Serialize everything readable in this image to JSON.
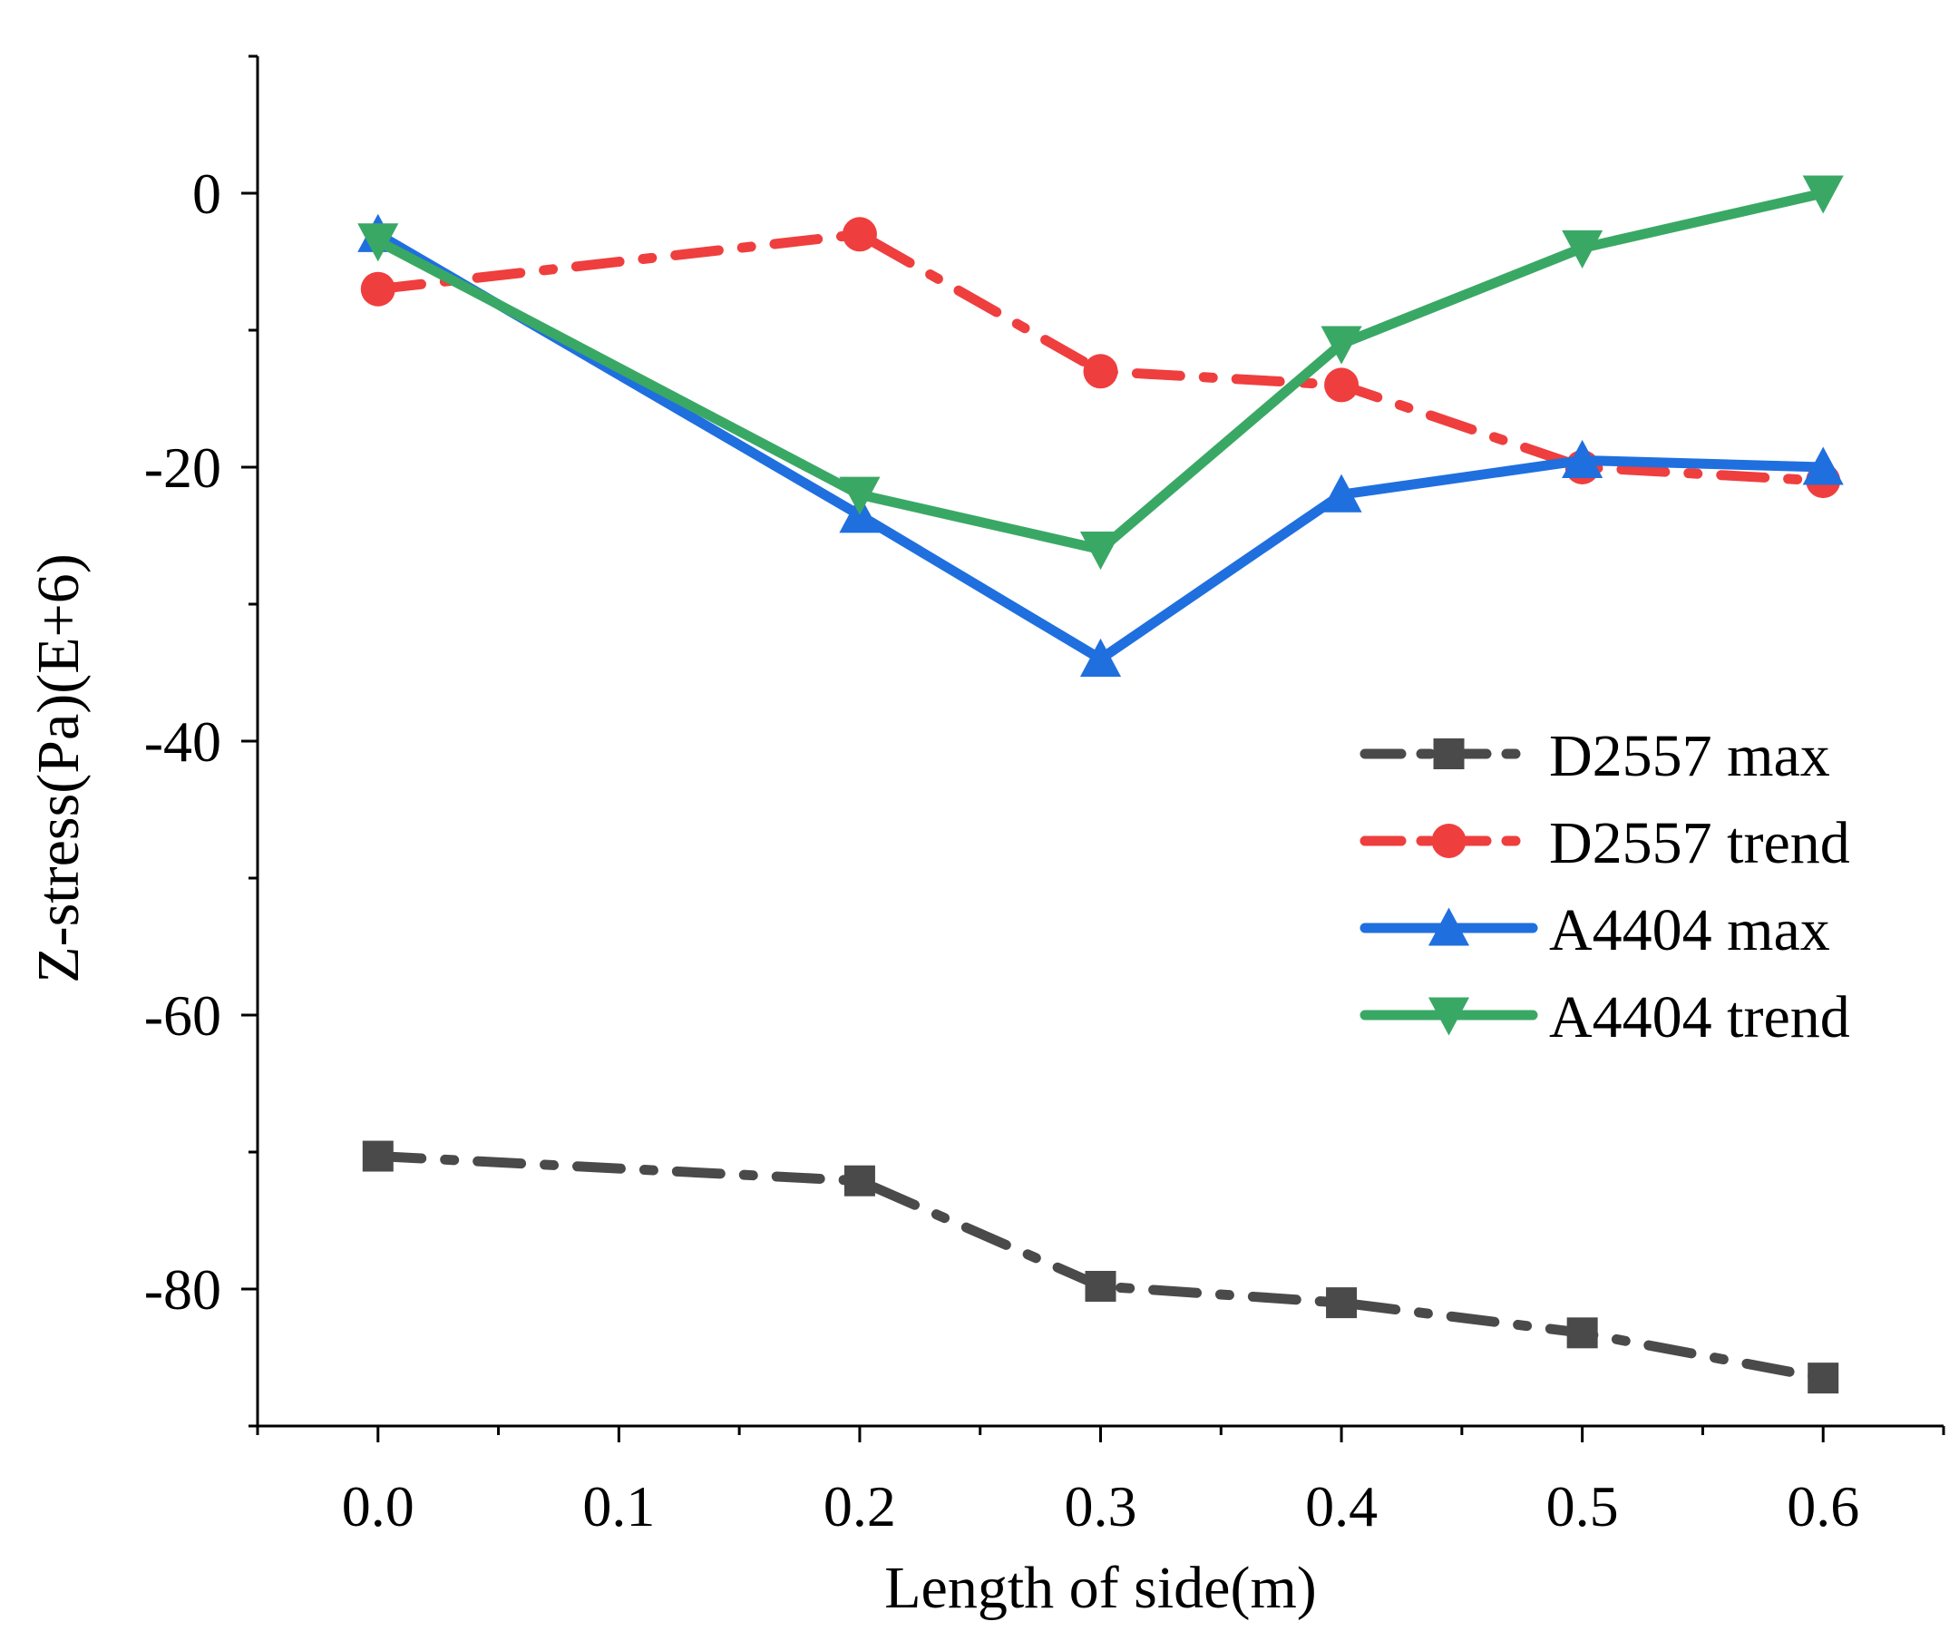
{
  "chart_data": {
    "type": "line",
    "title": "",
    "xlabel": "Length of side(m)",
    "ylabel": "Z-stress(Pa)(E+6)",
    "xlim": [
      -0.05,
      0.65
    ],
    "ylim": [
      -90,
      10
    ],
    "x": [
      0.0,
      0.2,
      0.3,
      0.4,
      0.5,
      0.6
    ],
    "xticks": [
      {
        "value": 0.0,
        "label": "0.0"
      },
      {
        "value": 0.1,
        "label": "0.1"
      },
      {
        "value": 0.2,
        "label": "0.2"
      },
      {
        "value": 0.3,
        "label": "0.3"
      },
      {
        "value": 0.4,
        "label": "0.4"
      },
      {
        "value": 0.5,
        "label": "0.5"
      },
      {
        "value": 0.6,
        "label": "0.6"
      }
    ],
    "yticks": [
      {
        "value": 0,
        "label": "0"
      },
      {
        "value": -20,
        "label": "-20"
      },
      {
        "value": -40,
        "label": "-40"
      },
      {
        "value": -60,
        "label": "-60"
      },
      {
        "value": -80,
        "label": "-80"
      }
    ],
    "legend_position": "center-right",
    "series": [
      {
        "name": "D2557 max",
        "color": "#4a4a4a",
        "marker": "square",
        "dash": "dashdot",
        "values": [
          -70.3,
          -72.1,
          -79.8,
          -81.0,
          -83.2,
          -86.5
        ]
      },
      {
        "name": "D2557 trend",
        "color": "#ef3e3e",
        "marker": "circle",
        "dash": "dashdot",
        "values": [
          -7.0,
          -3.0,
          -13.0,
          -14.0,
          -20.0,
          -21.0
        ]
      },
      {
        "name": "A4404 max",
        "color": "#1f6fdf",
        "marker": "triangle-up",
        "dash": "solid",
        "values": [
          -3.0,
          -23.5,
          -34.0,
          -22.0,
          -19.5,
          -20.0
        ]
      },
      {
        "name": "A4404 trend",
        "color": "#3aa865",
        "marker": "triangle-down",
        "dash": "solid",
        "values": [
          -3.5,
          -22.0,
          -26.0,
          -11.0,
          -4.0,
          0.0
        ]
      }
    ]
  }
}
